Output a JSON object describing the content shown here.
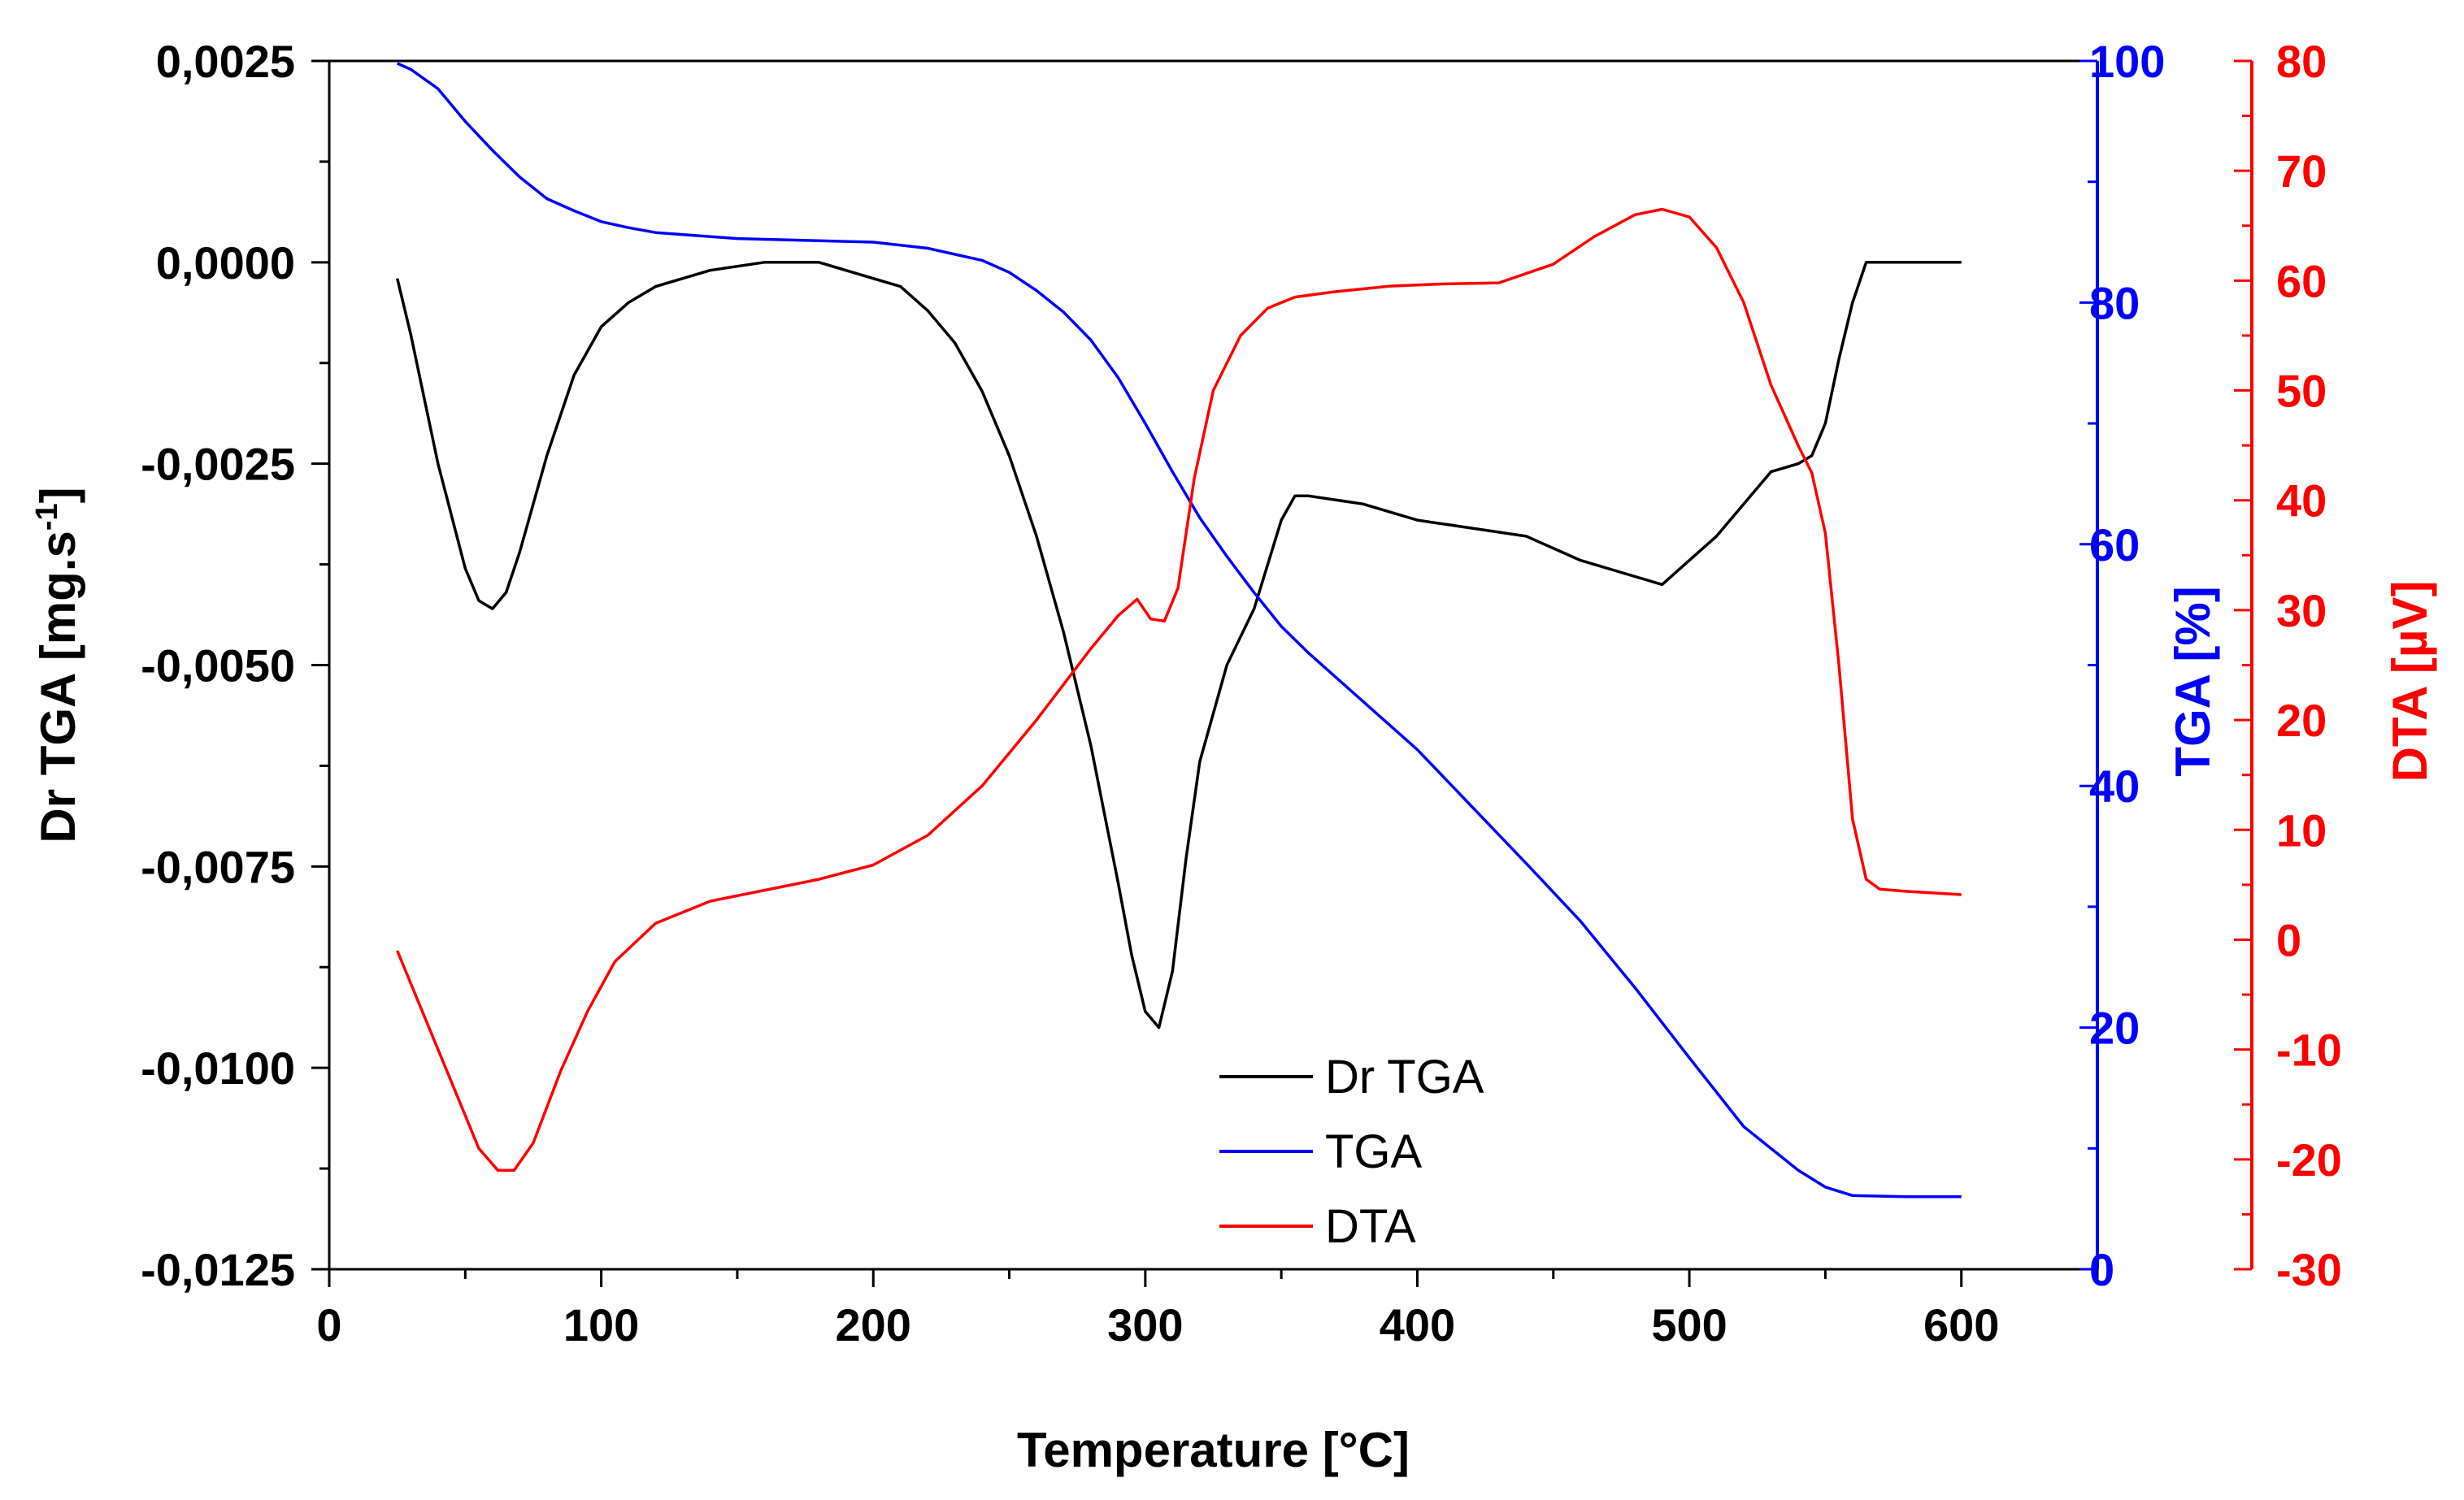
{
  "chart_data": {
    "type": "line",
    "title": "",
    "xlabel": "Temperature [°C]",
    "xlim": [
      0,
      650
    ],
    "xticks": [
      0,
      100,
      200,
      300,
      400,
      500,
      600
    ],
    "axes": {
      "left": {
        "label": "Dr TGA [mg.s-1]",
        "label_main": "Dr TGA [mg.s",
        "label_sup": "-1",
        "label_end": "]",
        "color": "#000000",
        "ylim": [
          -0.0125,
          0.0025
        ],
        "ticks": [
          0.0025,
          0.0,
          -0.0025,
          -0.005,
          -0.0075,
          -0.01,
          -0.0125
        ],
        "tick_labels": [
          "0,0025",
          "0,0000",
          "-0,0025",
          "-0,0050",
          "-0,0075",
          "-0,0100",
          "-0,0125"
        ]
      },
      "right1": {
        "label": "TGA [%]",
        "color": "#0000ff",
        "ylim": [
          0,
          100
        ],
        "ticks": [
          0,
          20,
          40,
          60,
          80,
          100
        ],
        "tick_labels": [
          "0",
          "20",
          "40",
          "60",
          "80",
          "100"
        ]
      },
      "right2": {
        "label": "DTA [µV]",
        "color": "#ff0000",
        "ylim": [
          -30,
          80
        ],
        "ticks": [
          80,
          70,
          60,
          50,
          40,
          30,
          20,
          10,
          0,
          -10,
          -20,
          -30
        ],
        "tick_labels": [
          "80",
          "70",
          "60",
          "50",
          "40",
          "30",
          "20",
          "10",
          "0",
          "-10",
          "-20",
          "-30"
        ]
      }
    },
    "legend": {
      "position": "bottom-center"
    },
    "series": [
      {
        "name": "Dr TGA",
        "axis": "left",
        "color": "#000000",
        "x": [
          25,
          30,
          40,
          50,
          55,
          60,
          65,
          70,
          80,
          90,
          100,
          110,
          120,
          140,
          160,
          180,
          200,
          210,
          220,
          230,
          240,
          250,
          260,
          270,
          280,
          290,
          295,
          300,
          305,
          310,
          315,
          320,
          330,
          340,
          350,
          355,
          360,
          380,
          400,
          420,
          440,
          460,
          480,
          490,
          500,
          510,
          520,
          530,
          540,
          545,
          550,
          555,
          560,
          565,
          570,
          580,
          590,
          600
        ],
        "y": [
          -0.0002,
          -0.0009,
          -0.0025,
          -0.0038,
          -0.0042,
          -0.0043,
          -0.0041,
          -0.0036,
          -0.0024,
          -0.0014,
          -0.0008,
          -0.0005,
          -0.0003,
          -0.0001,
          0.0,
          0.0,
          -0.0002,
          -0.0003,
          -0.0006,
          -0.001,
          -0.0016,
          -0.0024,
          -0.0034,
          -0.0046,
          -0.006,
          -0.0077,
          -0.0086,
          -0.0093,
          -0.0095,
          -0.0088,
          -0.0074,
          -0.0062,
          -0.005,
          -0.0043,
          -0.0032,
          -0.0029,
          -0.0029,
          -0.003,
          -0.0032,
          -0.0033,
          -0.0034,
          -0.0037,
          -0.0039,
          -0.004,
          -0.0037,
          -0.0034,
          -0.003,
          -0.0026,
          -0.0025,
          -0.0024,
          -0.002,
          -0.0012,
          -0.0005,
          0.0,
          0.0,
          0.0,
          0.0,
          0.0
        ]
      },
      {
        "name": "TGA",
        "axis": "right1",
        "color": "#0000ff",
        "x": [
          25,
          30,
          40,
          50,
          60,
          70,
          80,
          90,
          100,
          110,
          120,
          150,
          200,
          220,
          240,
          250,
          260,
          270,
          280,
          290,
          300,
          310,
          320,
          330,
          340,
          350,
          360,
          380,
          400,
          420,
          440,
          460,
          480,
          500,
          520,
          540,
          550,
          560,
          580,
          600
        ],
        "y": [
          99.8,
          99.3,
          97.7,
          95.0,
          92.6,
          90.4,
          88.6,
          87.6,
          86.7,
          86.2,
          85.8,
          85.3,
          85.0,
          84.5,
          83.5,
          82.5,
          81.0,
          79.2,
          76.9,
          73.8,
          70.0,
          66.0,
          62.2,
          59.0,
          56.0,
          53.2,
          51.0,
          47.0,
          43.0,
          38.3,
          33.6,
          28.8,
          23.3,
          17.5,
          11.8,
          8.2,
          6.8,
          6.1,
          6.0,
          6.0
        ]
      },
      {
        "name": "DTA",
        "axis": "right2",
        "color": "#ff0000",
        "x": [
          25,
          35,
          45,
          55,
          62,
          68,
          75,
          85,
          95,
          105,
          120,
          140,
          160,
          180,
          200,
          220,
          240,
          260,
          280,
          290,
          297,
          302,
          307,
          312,
          318,
          325,
          335,
          345,
          355,
          370,
          390,
          410,
          430,
          450,
          465,
          480,
          490,
          500,
          510,
          520,
          530,
          540,
          545,
          550,
          555,
          560,
          565,
          570,
          580,
          600
        ],
        "y": [
          -1,
          -7,
          -13,
          -19,
          -21,
          -21,
          -18.5,
          -12,
          -6.5,
          -2,
          1.5,
          3.5,
          4.5,
          5.5,
          6.8,
          9.5,
          14,
          20,
          26.5,
          29.5,
          31,
          29.2,
          29,
          32,
          42,
          50,
          55,
          57.5,
          58.5,
          59,
          59.5,
          59.7,
          59.8,
          61.5,
          64,
          66,
          66.5,
          65.8,
          63,
          58,
          50.5,
          45,
          42.5,
          37,
          25,
          11,
          5.5,
          4.6,
          4.4,
          4.1
        ]
      }
    ]
  }
}
